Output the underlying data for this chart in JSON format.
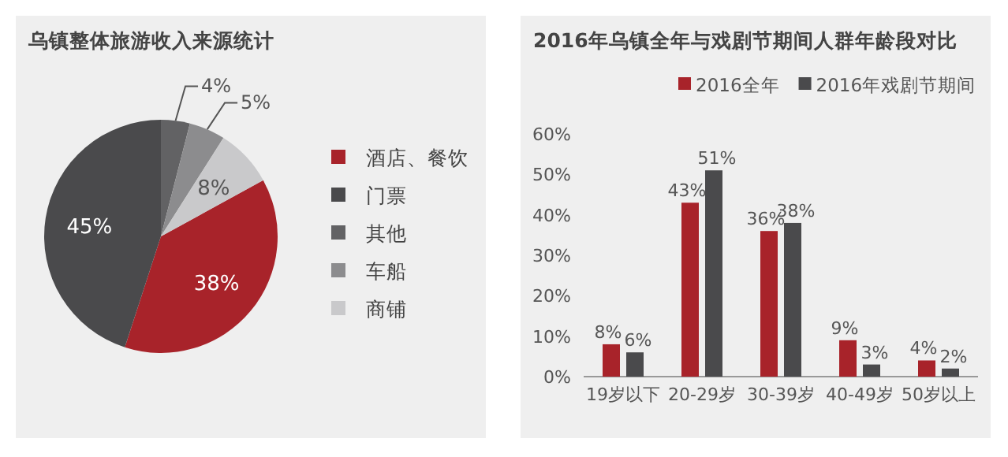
{
  "chart_data": [
    {
      "type": "pie",
      "title": "乌镇整体旅游收入来源统计",
      "categories": [
        "酒店、餐饮",
        "门票",
        "其他",
        "车船",
        "商铺"
      ],
      "values": [
        38,
        45,
        4,
        5,
        8
      ],
      "colors": [
        "#a8232a",
        "#4a4a4c",
        "#626264",
        "#8c8c8e",
        "#c9c9cb"
      ],
      "value_labels": [
        "38%",
        "45%",
        "4%",
        "5%",
        "8%"
      ],
      "legend": "right"
    },
    {
      "type": "bar",
      "title": "2016年乌镇全年与戏剧节期间人群年龄段对比",
      "categories": [
        "19岁以下",
        "20-29岁",
        "30-39岁",
        "40-49岁",
        "50岁以上"
      ],
      "series": [
        {
          "name": "2016全年",
          "color": "#a8232a",
          "values": [
            8,
            43,
            36,
            9,
            4
          ],
          "value_labels": [
            "8%",
            "43%",
            "36%",
            "9%",
            "4%"
          ]
        },
        {
          "name": "2016年戏剧节期间",
          "color": "#4a4a4c",
          "values": [
            6,
            51,
            38,
            3,
            2
          ],
          "value_labels": [
            "6%",
            "51%",
            "38%",
            "3%",
            "2%"
          ]
        }
      ],
      "ylim": [
        0,
        60
      ],
      "yticks": [
        {
          "value": 0,
          "label": "0%"
        },
        {
          "value": 10,
          "label": "10%"
        },
        {
          "value": 20,
          "label": "20%"
        },
        {
          "value": 30,
          "label": "30%"
        },
        {
          "value": 40,
          "label": "40%"
        },
        {
          "value": 50,
          "label": "50%"
        },
        {
          "value": 60,
          "label": "60%"
        }
      ],
      "grid": false,
      "legend": "top"
    }
  ]
}
